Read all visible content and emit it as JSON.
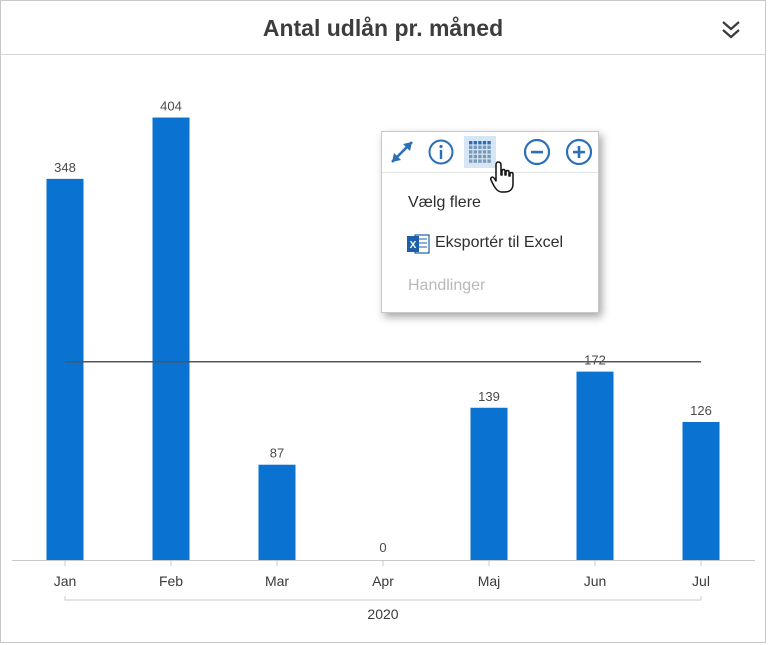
{
  "panel": {
    "title": "Antal udlån pr. måned",
    "collapse_icon": "double-chevron-down-icon"
  },
  "chart_data": {
    "type": "bar",
    "categories": [
      "Jan",
      "Feb",
      "Mar",
      "Apr",
      "Maj",
      "Jun",
      "Jul"
    ],
    "values": [
      348,
      404,
      87,
      0,
      139,
      172,
      126
    ],
    "value_labels": [
      "348",
      "404",
      "87",
      "0",
      "139",
      "172",
      "126"
    ],
    "group_label": "2020",
    "reference_line": 181,
    "ylim": [
      0,
      420
    ],
    "bar_color": "#0a72d1",
    "reference_line_color": "#555555",
    "grid": false
  },
  "popup": {
    "tools": [
      "expand-icon",
      "info-icon",
      "grid-icon",
      "zoom-out-icon",
      "zoom-in-icon"
    ],
    "active_tool": "grid-icon",
    "items": {
      "select_more": "Vælg flere",
      "export_excel": "Eksportér til Excel",
      "actions": "Handlinger"
    },
    "accent_color": "#2b6fb7"
  }
}
